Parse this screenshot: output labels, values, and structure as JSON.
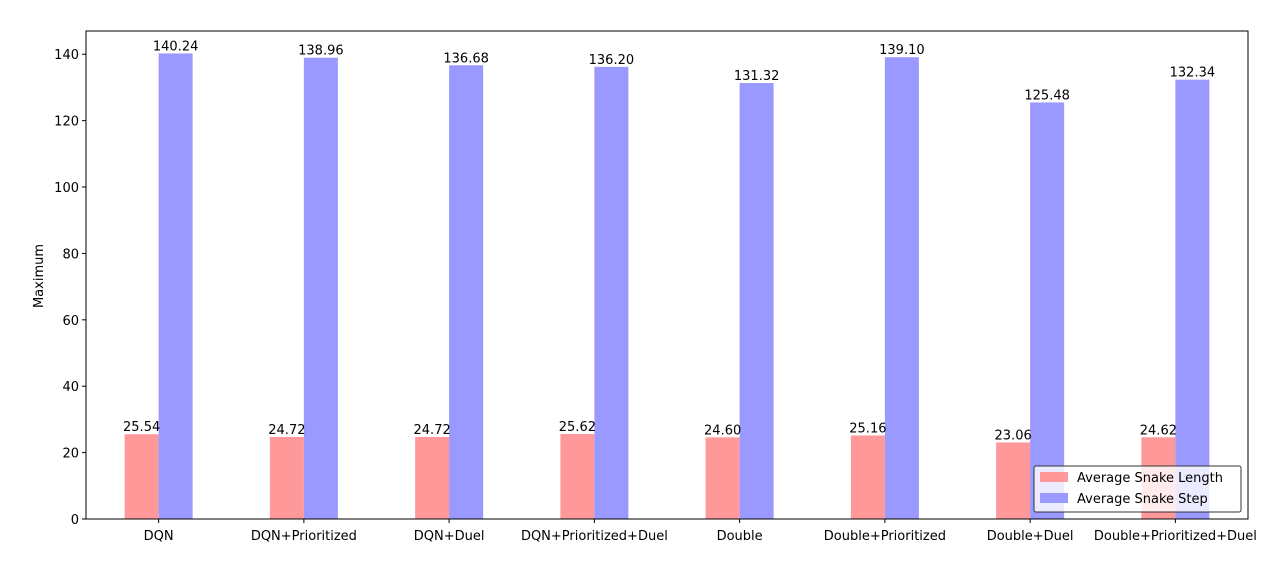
{
  "chart_data": {
    "type": "bar",
    "title": "",
    "xlabel": "",
    "ylabel": "Maximum",
    "ylim": [
      0,
      147
    ],
    "yticks": [
      0,
      20,
      40,
      60,
      80,
      100,
      120,
      140
    ],
    "categories": [
      "DQN",
      "DQN+Prioritized",
      "DQN+Duel",
      "DQN+Prioritized+Duel",
      "Double",
      "Double+Prioritized",
      "Double+Duel",
      "Double+Prioritized+Duel"
    ],
    "series": [
      {
        "name": "Average Snake Length",
        "color": "#ff9999",
        "values": [
          25.54,
          24.72,
          24.72,
          25.62,
          24.6,
          25.16,
          23.06,
          24.62
        ],
        "labels": [
          "25.54",
          "24.72",
          "24.72",
          "25.62",
          "24.60",
          "25.16",
          "23.06",
          "24.62"
        ]
      },
      {
        "name": "Average Snake Step",
        "color": "#9999ff",
        "values": [
          140.24,
          138.96,
          136.68,
          136.2,
          131.32,
          139.1,
          125.48,
          132.34
        ],
        "labels": [
          "140.24",
          "138.96",
          "136.68",
          "136.20",
          "131.32",
          "139.10",
          "125.48",
          "132.34"
        ]
      }
    ],
    "legend": {
      "placement": "lower-right"
    },
    "grid": false
  }
}
